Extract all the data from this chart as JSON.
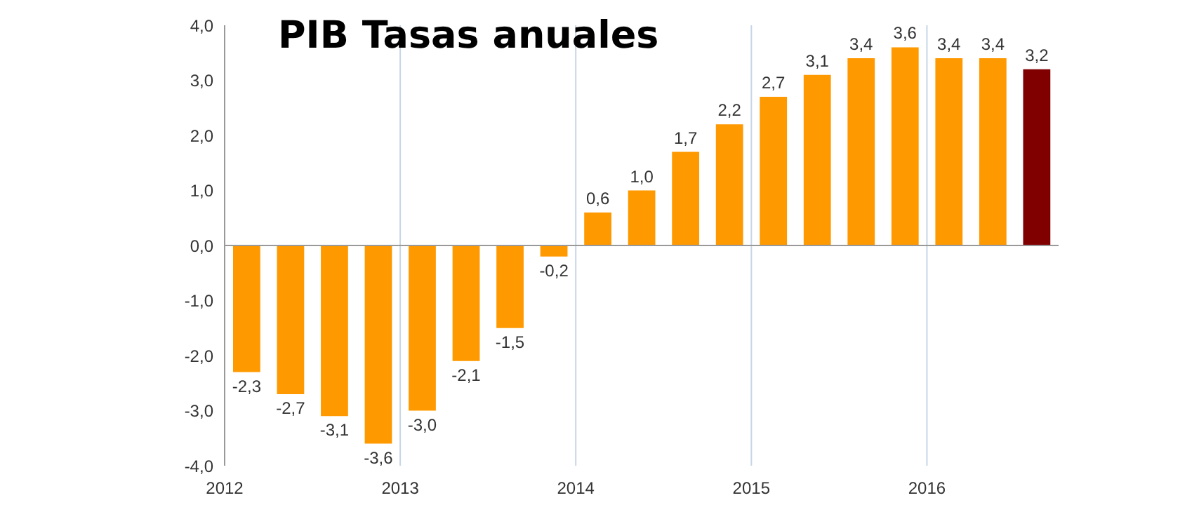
{
  "chart_data": {
    "type": "bar",
    "title": "PIB Tasas anuales",
    "categories": [
      "2012",
      null,
      null,
      null,
      "2013",
      null,
      null,
      null,
      "2014",
      null,
      null,
      null,
      "2015",
      null,
      null,
      null,
      "2016",
      null,
      null
    ],
    "values": [
      -2.3,
      -2.7,
      -3.1,
      -3.6,
      -3.0,
      -2.1,
      -1.5,
      -0.2,
      0.6,
      1.0,
      1.7,
      2.2,
      2.7,
      3.1,
      3.4,
      3.6,
      3.4,
      3.4,
      3.2
    ],
    "value_labels": [
      "-2,3",
      "-2,7",
      "-3,1",
      "-3,6",
      "-3,0",
      "-2,1",
      "-1,5",
      "-0,2",
      "0,6",
      "1,0",
      "1,7",
      "2,2",
      "2,7",
      "3,1",
      "3,4",
      "3,6",
      "3,4",
      "3,4",
      "3,2"
    ],
    "colors": [
      "#ff9900",
      "#ff9900",
      "#ff9900",
      "#ff9900",
      "#ff9900",
      "#ff9900",
      "#ff9900",
      "#ff9900",
      "#ff9900",
      "#ff9900",
      "#ff9900",
      "#ff9900",
      "#ff9900",
      "#ff9900",
      "#ff9900",
      "#ff9900",
      "#ff9900",
      "#ff9900",
      "#800000"
    ],
    "ylim": [
      -4,
      4
    ],
    "yticks": [
      {
        "value": -4,
        "label": "-4,0"
      },
      {
        "value": -3,
        "label": "-3,0"
      },
      {
        "value": -2,
        "label": "-2,0"
      },
      {
        "value": -1,
        "label": "-1,0"
      },
      {
        "value": 0,
        "label": "0,0"
      },
      {
        "value": 1,
        "label": "1,0"
      },
      {
        "value": 2,
        "label": "2,0"
      },
      {
        "value": 3,
        "label": "3,0"
      },
      {
        "value": 4,
        "label": "4,0"
      }
    ],
    "grid": "x"
  }
}
